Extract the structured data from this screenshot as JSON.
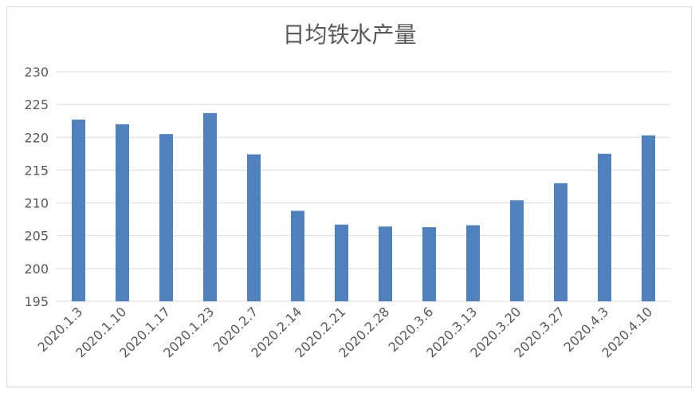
{
  "chart_data": {
    "type": "bar",
    "title": "日均铁水产量",
    "xlabel": "",
    "ylabel": "",
    "categories": [
      "2020.1.3",
      "2020.1.10",
      "2020.1.17",
      "2020.1.23",
      "2020.2.7",
      "2020.2.14",
      "2020.2.21",
      "2020.2.28",
      "2020.3.6",
      "2020.3.13",
      "2020.3.20",
      "2020.3.27",
      "2020.4.3",
      "2020.4.10"
    ],
    "values": [
      222.7,
      222.0,
      220.5,
      223.7,
      217.4,
      208.8,
      206.7,
      206.4,
      206.3,
      206.6,
      210.4,
      213.0,
      217.5,
      220.3
    ],
    "ylim": [
      195,
      230
    ],
    "yticks": [
      195,
      200,
      205,
      210,
      215,
      220,
      225,
      230
    ],
    "grid": true,
    "legend": "none",
    "bar_color": "#4e81bd"
  }
}
